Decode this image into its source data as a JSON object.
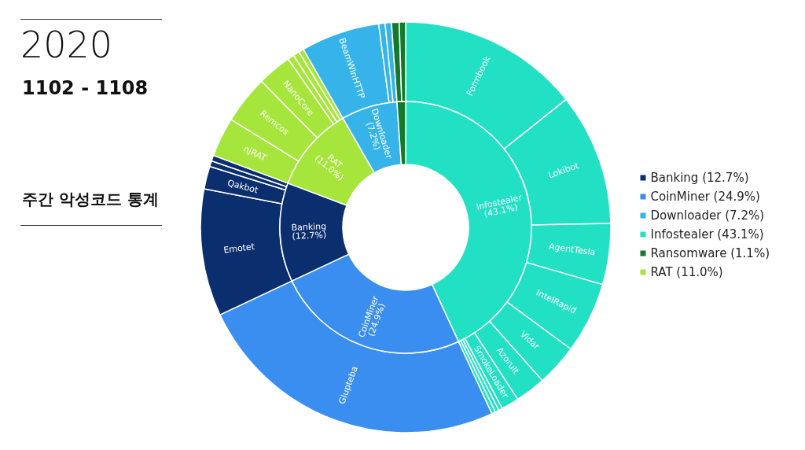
{
  "chart_data": [
    {
      "type": "donut",
      "title": "2020",
      "subtitle": "1102 - 1108",
      "annotations": [
        "주간 악성코드 통계"
      ],
      "categories": [
        "Infostealer",
        "CoinMiner",
        "Banking",
        "RAT",
        "Downloader",
        "Ransomware"
      ],
      "values": [
        43.1,
        24.9,
        12.7,
        11.0,
        7.2,
        1.1
      ],
      "value_labels": [
        "(43.1%)",
        "(24.9%)",
        "(12.7%)",
        "(11.0%)",
        "(7.2%)",
        "(1.1%)"
      ],
      "colors": [
        "#22e0c4",
        "#3a8ef0",
        "#0b2e6f",
        "#a6e63c",
        "#36b4ea",
        "#137a2c"
      ],
      "legend": "right"
    },
    {
      "type": "donut",
      "categories": [
        "Formbook",
        "Lokibot",
        "AgentTesla",
        "IntelRapid",
        "Vidar",
        "Azorult",
        "SmokeLoader",
        null,
        null,
        null,
        "Glupteba",
        "Emotet",
        "Qakbot",
        null,
        null,
        "njRAT",
        "Remcos",
        "NanoCore",
        null,
        null,
        null,
        "BeamWinHTTP",
        null,
        null,
        null,
        null
      ],
      "values": [
        14.3,
        10.4,
        4.8,
        5.6,
        3.3,
        2.4,
        1.4,
        0.3,
        0.3,
        0.3,
        24.9,
        10.0,
        1.8,
        0.45,
        0.45,
        3.1,
        3.8,
        2.7,
        0.5,
        0.5,
        0.4,
        6.2,
        0.5,
        0.5,
        0.6,
        0.5
      ],
      "colors": [
        "#22e0c4",
        "#22e0c4",
        "#22e0c4",
        "#22e0c4",
        "#22e0c4",
        "#22e0c4",
        "#22e0c4",
        "#22e0c4",
        "#22e0c4",
        "#22e0c4",
        "#3a8ef0",
        "#0b2e6f",
        "#0b2e6f",
        "#0b2e6f",
        "#0b2e6f",
        "#a6e63c",
        "#a6e63c",
        "#a6e63c",
        "#a6e63c",
        "#a6e63c",
        "#a6e63c",
        "#36b4ea",
        "#36b4ea",
        "#36b4ea",
        "#137a2c",
        "#137a2c"
      ]
    }
  ]
}
